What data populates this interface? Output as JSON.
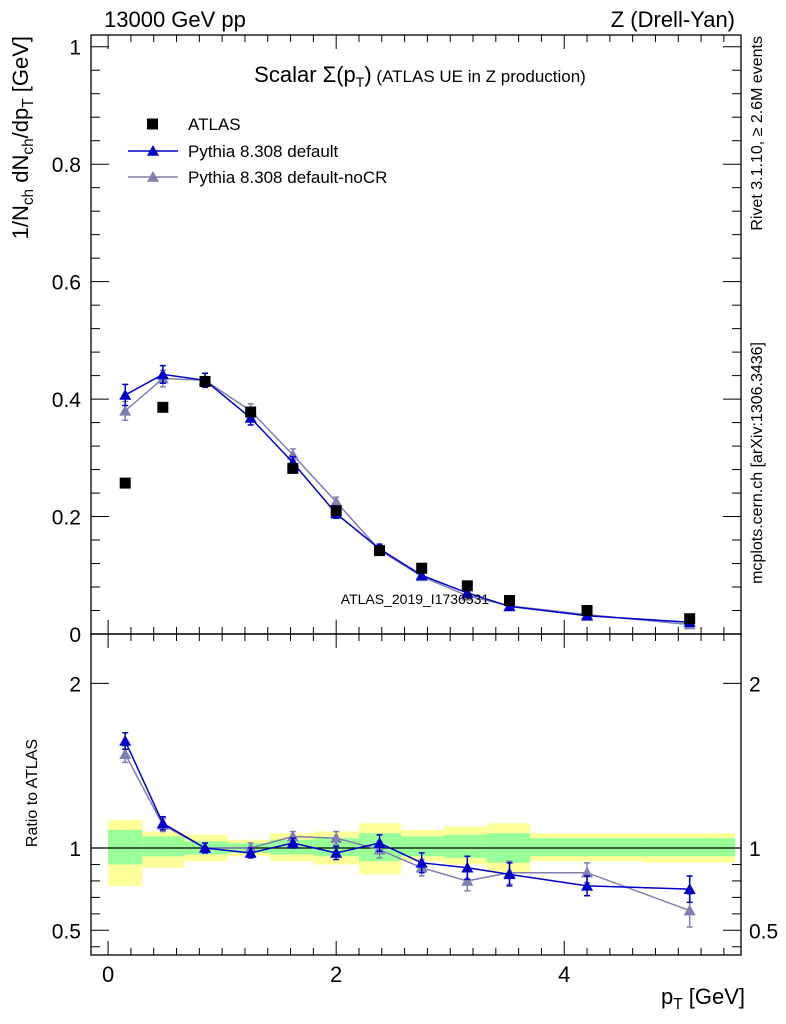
{
  "header": {
    "left": "13000 GeV pp",
    "right": "Z (Drell-Yan)"
  },
  "title": "Scalar Σ(p_T) (ATLAS UE in Z production)",
  "side_labels": {
    "rivet": "Rivet 3.1.10, ≥ 2.6M events",
    "mcplots": "mcplots.cern.ch [arXiv:1306.3436]"
  },
  "watermark": "ATLAS_2019_I1736531",
  "chart_data": [
    {
      "type": "scatter",
      "panel": "main",
      "ylabel": "1/N_ch dN_ch/dp_T [GeV]",
      "xlabel": "p_T [GeV]",
      "xlim": [
        -0.15,
        5.55
      ],
      "ylim": [
        0,
        1.02
      ],
      "yticks": [
        0,
        0.2,
        0.4,
        0.6,
        0.8,
        1
      ],
      "ytick_labels": [
        "0",
        "0.2",
        "0.4",
        "0.6",
        "0.8",
        "1"
      ],
      "legend": [
        "ATLAS",
        "Pythia 8.308 default",
        "Pythia 8.308 default-noCR"
      ],
      "legend_position": "top-left",
      "colors": {
        "ATLAS": "#000000",
        "default": "#0000cc",
        "noCR": "#7f7fb2"
      },
      "x": [
        0.15,
        0.48,
        0.85,
        1.25,
        1.62,
        2.0,
        2.38,
        2.75,
        3.15,
        3.52,
        4.2,
        5.1
      ],
      "series": [
        {
          "name": "ATLAS",
          "marker": "square",
          "values": [
            0.257,
            0.386,
            0.43,
            0.378,
            0.282,
            0.21,
            0.142,
            0.112,
            0.082,
            0.057,
            0.04,
            0.026
          ]
        },
        {
          "name": "Pythia 8.308 default",
          "marker": "triangle",
          "values": [
            0.407,
            0.442,
            0.432,
            0.368,
            0.292,
            0.205,
            0.145,
            0.1,
            0.07,
            0.047,
            0.031,
            0.02
          ],
          "errors": [
            0.018,
            0.015,
            0.012,
            0.012,
            0.01,
            0.008,
            0.008,
            0.006,
            0.005,
            0.004,
            0.003,
            0.002
          ]
        },
        {
          "name": "Pythia 8.308 default-noCR",
          "marker": "triangle",
          "values": [
            0.38,
            0.435,
            0.432,
            0.38,
            0.305,
            0.225,
            0.143,
            0.098,
            0.065,
            0.048,
            0.033,
            0.016
          ],
          "errors": [
            0.016,
            0.014,
            0.012,
            0.012,
            0.01,
            0.008,
            0.008,
            0.006,
            0.005,
            0.004,
            0.003,
            0.002
          ]
        }
      ]
    },
    {
      "type": "scatter",
      "panel": "ratio",
      "ylabel": "Ratio to ATLAS",
      "xlabel": "p_T [GeV]",
      "xlim": [
        -0.15,
        5.55
      ],
      "ylim": [
        0.35,
        2.3
      ],
      "yticks": [
        0.5,
        1,
        2
      ],
      "ytick_labels": [
        "0.5",
        "1",
        "2"
      ],
      "xticks": [
        0,
        2,
        4
      ],
      "xtick_labels": [
        "0",
        "2",
        "4"
      ],
      "bins": [
        [
          0,
          0.3
        ],
        [
          0.3,
          0.67
        ],
        [
          0.67,
          1.05
        ],
        [
          1.05,
          1.42
        ],
        [
          1.42,
          1.8
        ],
        [
          1.8,
          2.2
        ],
        [
          2.2,
          2.57
        ],
        [
          2.57,
          2.95
        ],
        [
          2.95,
          3.32
        ],
        [
          3.32,
          3.7
        ],
        [
          3.7,
          4.7
        ],
        [
          4.7,
          5.5
        ]
      ],
      "band_yellow": [
        [
          0.77,
          1.17
        ],
        [
          0.88,
          1.1
        ],
        [
          0.92,
          1.08
        ],
        [
          0.95,
          1.05
        ],
        [
          0.92,
          1.09
        ],
        [
          0.9,
          1.1
        ],
        [
          0.84,
          1.15
        ],
        [
          0.92,
          1.11
        ],
        [
          0.9,
          1.13
        ],
        [
          0.85,
          1.15
        ],
        [
          0.92,
          1.09
        ],
        [
          0.91,
          1.09
        ]
      ],
      "band_green": [
        [
          0.9,
          1.11
        ],
        [
          0.95,
          1.07
        ],
        [
          0.96,
          1.04
        ],
        [
          0.97,
          1.03
        ],
        [
          0.96,
          1.05
        ],
        [
          0.95,
          1.06
        ],
        [
          0.92,
          1.09
        ],
        [
          0.95,
          1.07
        ],
        [
          0.94,
          1.08
        ],
        [
          0.91,
          1.09
        ],
        [
          0.95,
          1.06
        ],
        [
          0.95,
          1.06
        ]
      ],
      "series": [
        {
          "name": "Pythia 8.308 default",
          "marker": "triangle",
          "values": [
            1.65,
            1.15,
            1.0,
            0.97,
            1.03,
            0.97,
            1.03,
            0.91,
            0.88,
            0.84,
            0.77,
            0.75
          ],
          "errors": [
            0.05,
            0.04,
            0.03,
            0.03,
            0.03,
            0.04,
            0.05,
            0.06,
            0.07,
            0.07,
            0.06,
            0.08
          ]
        },
        {
          "name": "Pythia 8.308 default-noCR",
          "marker": "triangle",
          "values": [
            1.57,
            1.14,
            1.0,
            1.0,
            1.07,
            1.06,
            0.99,
            0.88,
            0.8,
            0.85,
            0.85,
            0.62
          ],
          "errors": [
            0.05,
            0.04,
            0.03,
            0.03,
            0.03,
            0.04,
            0.05,
            0.05,
            0.06,
            0.07,
            0.06,
            0.1
          ]
        }
      ]
    }
  ]
}
